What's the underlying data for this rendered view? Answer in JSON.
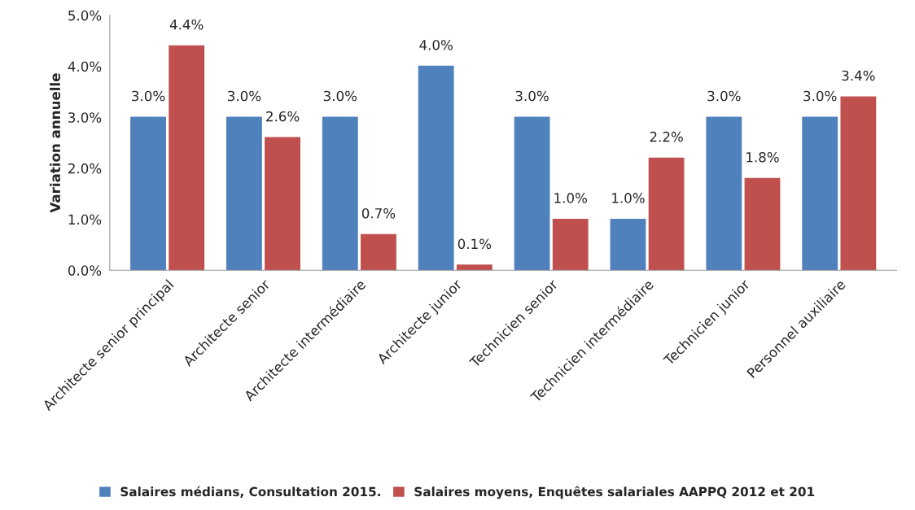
{
  "chart_data": {
    "type": "bar",
    "ylabel": "Variation annuelle",
    "categories": [
      "Architecte senior principal",
      "Architecte senior",
      "Architecte intermédiaire",
      "Architecte junior",
      "Technicien senior",
      "Technicien intermédiaire",
      "Technicien junior",
      "Personnel auxiliaire"
    ],
    "series": [
      {
        "name": "Salaires médians, Consultation 2015.",
        "color": "#4f81bd",
        "values": [
          3.0,
          3.0,
          3.0,
          4.0,
          3.0,
          1.0,
          3.0,
          3.0
        ],
        "value_labels": [
          "3.0%",
          "3.0%",
          "3.0%",
          "4.0%",
          "3.0%",
          "1.0%",
          "3.0%",
          "3.0%"
        ]
      },
      {
        "name": "Salaires moyens, Enquêtes salariales AAPPQ 2012 et 201",
        "color": "#c0504d",
        "values": [
          4.4,
          2.6,
          0.7,
          0.1,
          1.0,
          2.2,
          1.8,
          3.4
        ],
        "value_labels": [
          "4.4%",
          "2.6%",
          "0.7%",
          "0.1%",
          "1.0%",
          "2.2%",
          "1.8%",
          "3.4%"
        ]
      }
    ],
    "ylim": [
      0,
      5
    ],
    "yticks": [
      {
        "value": 0,
        "label": "0.0%"
      },
      {
        "value": 1,
        "label": "1.0%"
      },
      {
        "value": 2,
        "label": "2.0%"
      },
      {
        "value": 3,
        "label": "3.0%"
      },
      {
        "value": 4,
        "label": "4.0%"
      },
      {
        "value": 5,
        "label": "5.0%"
      }
    ],
    "grid": false,
    "legend": "bottom"
  }
}
